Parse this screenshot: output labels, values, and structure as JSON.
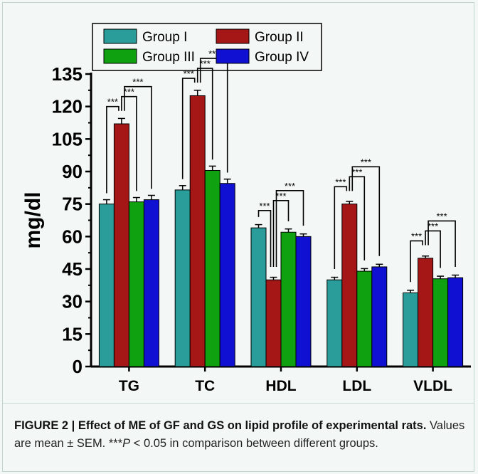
{
  "chart_data": {
    "type": "bar",
    "categories": [
      "TG",
      "TC",
      "HDL",
      "LDL",
      "VLDL"
    ],
    "ylabel": "mg/dl",
    "ylim": [
      0,
      135
    ],
    "yticks": [
      0,
      15,
      30,
      45,
      60,
      75,
      90,
      105,
      120,
      135
    ],
    "legend_placement": "top-left",
    "series": [
      {
        "name": "Group I",
        "color": "#2a9d9a",
        "values": [
          75,
          81.5,
          64,
          40,
          34
        ],
        "errors": [
          2,
          2,
          1.5,
          1.2,
          1.2
        ]
      },
      {
        "name": "Group II",
        "color": "#a51616",
        "values": [
          112,
          125,
          40,
          75,
          50
        ],
        "errors": [
          2.5,
          2.5,
          1.2,
          1.2,
          1
        ]
      },
      {
        "name": "Group III",
        "color": "#0fa10f",
        "values": [
          76,
          90.5,
          62,
          44,
          40.5
        ],
        "errors": [
          2,
          2,
          1.5,
          1.2,
          1.2
        ]
      },
      {
        "name": "Group IV",
        "color": "#1010d2",
        "values": [
          77,
          84.5,
          60,
          46,
          41
        ],
        "errors": [
          2,
          2,
          1.2,
          1.2,
          1.2
        ]
      }
    ],
    "significance_label": "***"
  },
  "caption": {
    "figure_label": "FIGURE 2 |",
    "title": "Effect of ME of GF and GS on lipid profile of experimental rats.",
    "body_pre": " Values are mean ± SEM. ***",
    "p_symbol": "P",
    "body_post": " < 0.05 in comparison between different groups."
  }
}
